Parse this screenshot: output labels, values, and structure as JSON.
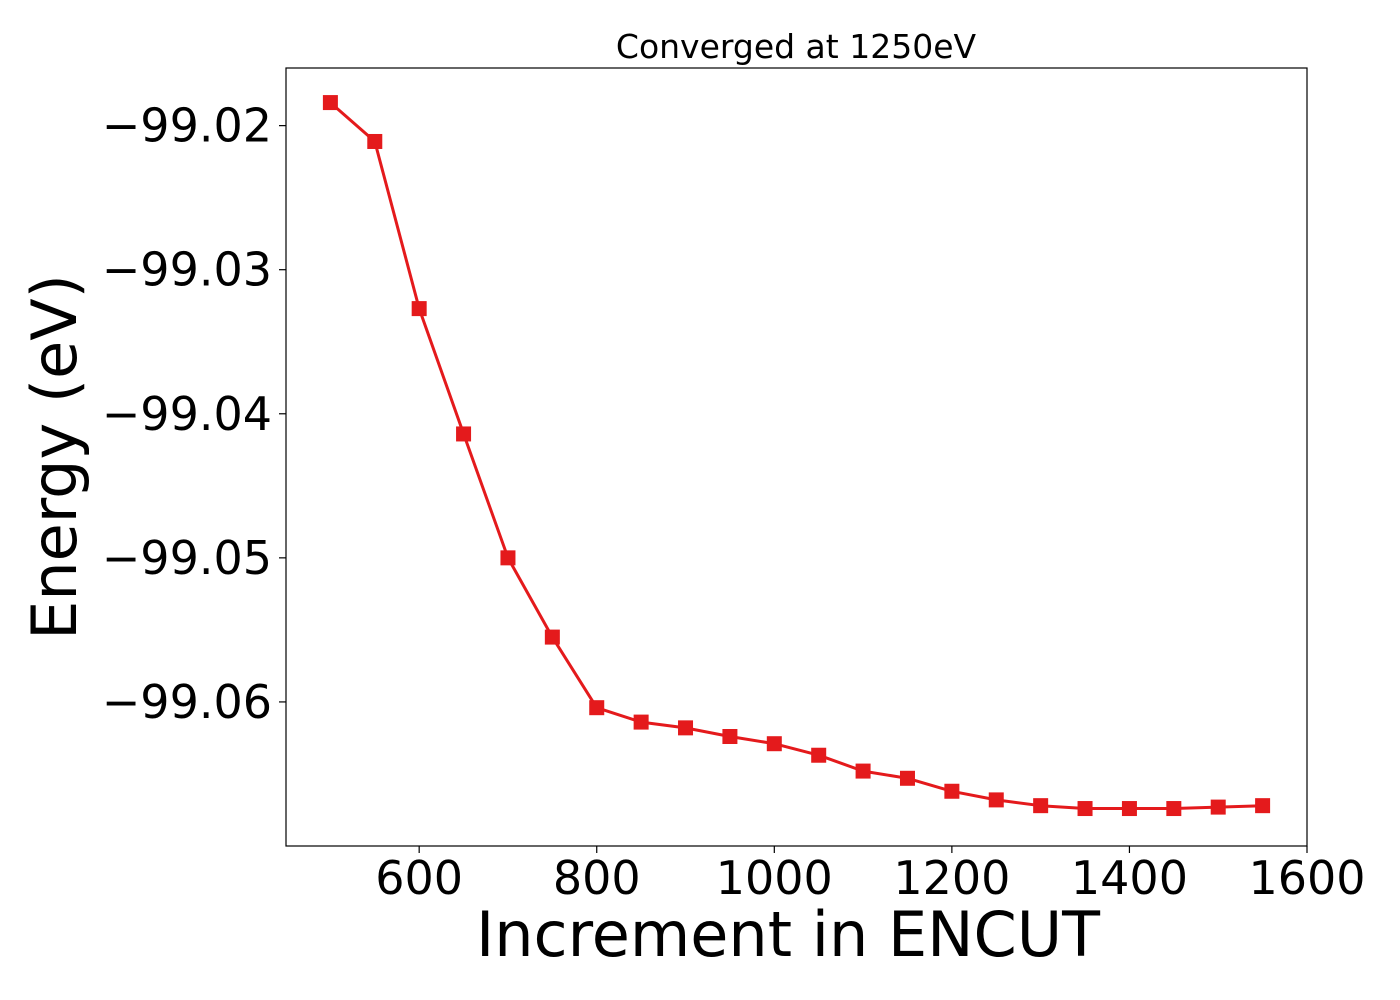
{
  "chart_data": {
    "type": "line",
    "title": "Converged at 1250eV",
    "xlabel": "Increment in ENCUT",
    "ylabel": "Energy (eV)",
    "xlim": [
      450,
      1600
    ],
    "ylim": [
      -99.07,
      -99.016
    ],
    "x_ticks": [
      {
        "value": 600,
        "label": "600"
      },
      {
        "value": 800,
        "label": "800"
      },
      {
        "value": 1000,
        "label": "1000"
      },
      {
        "value": 1200,
        "label": "1200"
      },
      {
        "value": 1400,
        "label": "1400"
      },
      {
        "value": 1600,
        "label": "1600"
      }
    ],
    "y_ticks": [
      {
        "value": -99.02,
        "label": "−99.02"
      },
      {
        "value": -99.03,
        "label": "−99.03"
      },
      {
        "value": -99.04,
        "label": "−99.04"
      },
      {
        "value": -99.05,
        "label": "−99.05"
      },
      {
        "value": -99.06,
        "label": "−99.06"
      }
    ],
    "grid": false,
    "series": [
      {
        "color": "#e41a1c",
        "marker": "square",
        "x": [
          500,
          550,
          600,
          650,
          700,
          750,
          800,
          850,
          900,
          950,
          1000,
          1050,
          1100,
          1150,
          1200,
          1250,
          1300,
          1350,
          1400,
          1450,
          1500,
          1550
        ],
        "y": [
          -99.0184,
          -99.0211,
          -99.0327,
          -99.0414,
          -99.05,
          -99.0555,
          -99.0604,
          -99.0614,
          -99.0618,
          -99.0624,
          -99.0629,
          -99.0637,
          -99.0648,
          -99.0653,
          -99.0662,
          -99.0668,
          -99.0672,
          -99.0674,
          -99.0674,
          -99.0674,
          -99.0673,
          -99.0672
        ]
      }
    ]
  }
}
